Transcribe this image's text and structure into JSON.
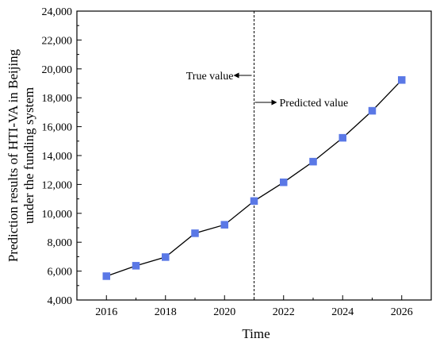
{
  "chart_data": {
    "type": "line",
    "xlabel": "Time",
    "ylabel_lines": [
      "Prediction results of HTI-VA in Beijing",
      "under the funding system"
    ],
    "x": [
      2016,
      2017,
      2018,
      2019,
      2020,
      2021,
      2022,
      2023,
      2024,
      2025,
      2026
    ],
    "y": [
      5650,
      6370,
      6970,
      8620,
      9210,
      10850,
      12150,
      13580,
      15230,
      17100,
      19230
    ],
    "xlim": [
      2015,
      2027
    ],
    "ylim": [
      4000,
      24000
    ],
    "x_ticks": [
      2016,
      2018,
      2020,
      2022,
      2024,
      2026
    ],
    "y_ticks": [
      4000,
      6000,
      8000,
      10000,
      12000,
      14000,
      16000,
      18000,
      20000,
      22000,
      24000
    ],
    "y_tick_labels": [
      "4,000",
      "6,000",
      "8,000",
      "10,000",
      "12,000",
      "14,000",
      "16,000",
      "18,000",
      "20,000",
      "22,000",
      "24,000"
    ],
    "divider_x": 2021,
    "annotations": {
      "left": "True value",
      "right": "Predicted value"
    },
    "marker_color": "#5a78e6",
    "line_color": "#000000",
    "grid": false
  }
}
